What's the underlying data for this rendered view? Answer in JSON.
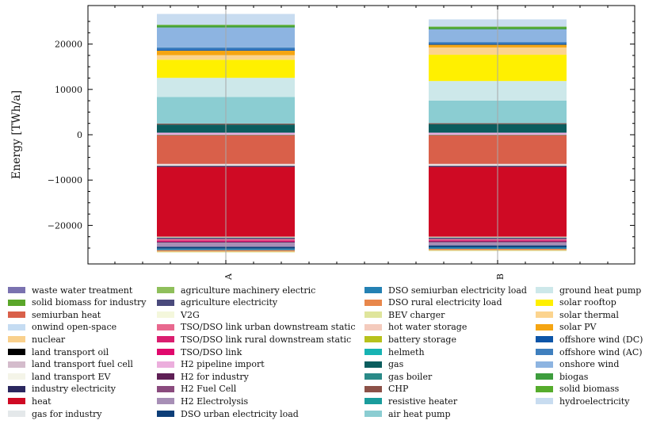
{
  "chart_data": {
    "type": "bar",
    "stacked": true,
    "categories": [
      "A",
      "B"
    ],
    "xlabel": "",
    "ylabel": "Energy [TWh/a]",
    "ylim": [
      -28500,
      28500
    ],
    "yticks": [
      -20000,
      -10000,
      0,
      10000,
      20000
    ],
    "ytick_labels": [
      "−20000",
      "−10000",
      "0",
      "10000",
      "20000"
    ],
    "legend_placement": "below",
    "series": [
      {
        "name": "waste water treatment",
        "color": "#7a72b0",
        "values": [
          -60,
          -60
        ]
      },
      {
        "name": "solid biomass for industry",
        "color": "#5aa62a",
        "values": [
          -80,
          -80
        ]
      },
      {
        "name": "semiurban heat",
        "color": "#d9604a",
        "values": [
          -6300,
          -6300
        ]
      },
      {
        "name": "onwind open-space",
        "color": "#c5dcf2",
        "values": [
          0,
          0
        ]
      },
      {
        "name": "nuclear",
        "color": "#f9d08c",
        "values": [
          0,
          0
        ]
      },
      {
        "name": "land transport oil",
        "color": "#000000",
        "values": [
          0,
          0
        ]
      },
      {
        "name": "land transport fuel cell",
        "color": "#d4bccc",
        "values": [
          -120,
          -120
        ]
      },
      {
        "name": "land transport EV",
        "color": "#f4f4e8",
        "values": [
          -300,
          -300
        ]
      },
      {
        "name": "industry electricity",
        "color": "#2a275f",
        "values": [
          -250,
          -250
        ]
      },
      {
        "name": "heat",
        "color": "#cf0a24",
        "values": [
          -15400,
          -15400
        ]
      },
      {
        "name": "gas for industry",
        "color": "#e4e8ea",
        "values": [
          -150,
          -150
        ]
      },
      {
        "name": "agriculture machinery electric",
        "color": "#8fbf5b",
        "values": [
          -60,
          -60
        ]
      },
      {
        "name": "agriculture electricity",
        "color": "#4a4a7c",
        "values": [
          -300,
          -300
        ]
      },
      {
        "name": "V2G",
        "color": "#f4f7dc",
        "values": [
          0,
          0
        ]
      },
      {
        "name": "TSO/DSO link urban downstream static",
        "color": "#e8688e",
        "values": [
          -300,
          -250
        ]
      },
      {
        "name": "TSO/DSO link rural downstream static",
        "color": "#da1e6f",
        "values": [
          -200,
          -150
        ]
      },
      {
        "name": "TSO/DSO link",
        "color": "#e0086c",
        "values": [
          -100,
          -100
        ]
      },
      {
        "name": "H2 pipeline import",
        "color": "#ecaedd",
        "values": [
          450,
          450
        ]
      },
      {
        "name": "H2 for industry",
        "color": "#5e1f55",
        "values": [
          -200,
          -200
        ]
      },
      {
        "name": "H2 Fuel Cell",
        "color": "#8a4b7e",
        "values": [
          0,
          0
        ]
      },
      {
        "name": "H2 Electrolysis",
        "color": "#a78fb6",
        "values": [
          -900,
          -700
        ]
      },
      {
        "name": "DSO urban electricity load",
        "color": "#0d3e78",
        "values": [
          -400,
          -400
        ]
      },
      {
        "name": "DSO semiurban electricity load",
        "color": "#2481b3",
        "values": [
          -350,
          -350
        ]
      },
      {
        "name": "DSO rural electricity load",
        "color": "#e8874b",
        "values": [
          -300,
          -300
        ]
      },
      {
        "name": "BEV charger",
        "color": "#dfe59c",
        "values": [
          -200,
          -200
        ]
      },
      {
        "name": "hot water storage",
        "color": "#f4cbbd",
        "values": [
          0,
          0
        ]
      },
      {
        "name": "battery storage",
        "color": "#b7c21d",
        "values": [
          0,
          0
        ]
      },
      {
        "name": "helmeth",
        "color": "#17b3b3",
        "values": [
          0,
          0
        ]
      },
      {
        "name": "gas",
        "color": "#0b5d5e",
        "values": [
          1800,
          1900
        ]
      },
      {
        "name": "gas boiler",
        "color": "#2a8a88",
        "values": [
          0,
          0
        ]
      },
      {
        "name": "CHP",
        "color": "#8c5148",
        "values": [
          200,
          200
        ]
      },
      {
        "name": "resistive heater",
        "color": "#1a9c9c",
        "values": [
          0,
          0
        ]
      },
      {
        "name": "air heat pump",
        "color": "#8bcdd2",
        "values": [
          5900,
          5000
        ]
      },
      {
        "name": "ground heat pump",
        "color": "#cde8ea",
        "values": [
          4200,
          4300
        ]
      },
      {
        "name": "solar rooftop",
        "color": "#fff000",
        "values": [
          4000,
          5800
        ]
      },
      {
        "name": "solar thermal",
        "color": "#fcd48e",
        "values": [
          1000,
          1600
        ]
      },
      {
        "name": "solar PV",
        "color": "#f5a512",
        "values": [
          1000,
          600
        ]
      },
      {
        "name": "offshore wind (DC)",
        "color": "#0d55a8",
        "values": [
          300,
          300
        ]
      },
      {
        "name": "offshore wind (AC)",
        "color": "#3f7fbe",
        "values": [
          400,
          300
        ]
      },
      {
        "name": "onshore wind",
        "color": "#8db4e1",
        "values": [
          4400,
          2800
        ]
      },
      {
        "name": "biogas",
        "color": "#3e9d3e",
        "values": [
          300,
          300
        ]
      },
      {
        "name": "solid biomass",
        "color": "#56ac2c",
        "values": [
          300,
          300
        ]
      },
      {
        "name": "hydroelectricity",
        "color": "#c8dcf0",
        "values": [
          2400,
          1600
        ]
      }
    ]
  }
}
